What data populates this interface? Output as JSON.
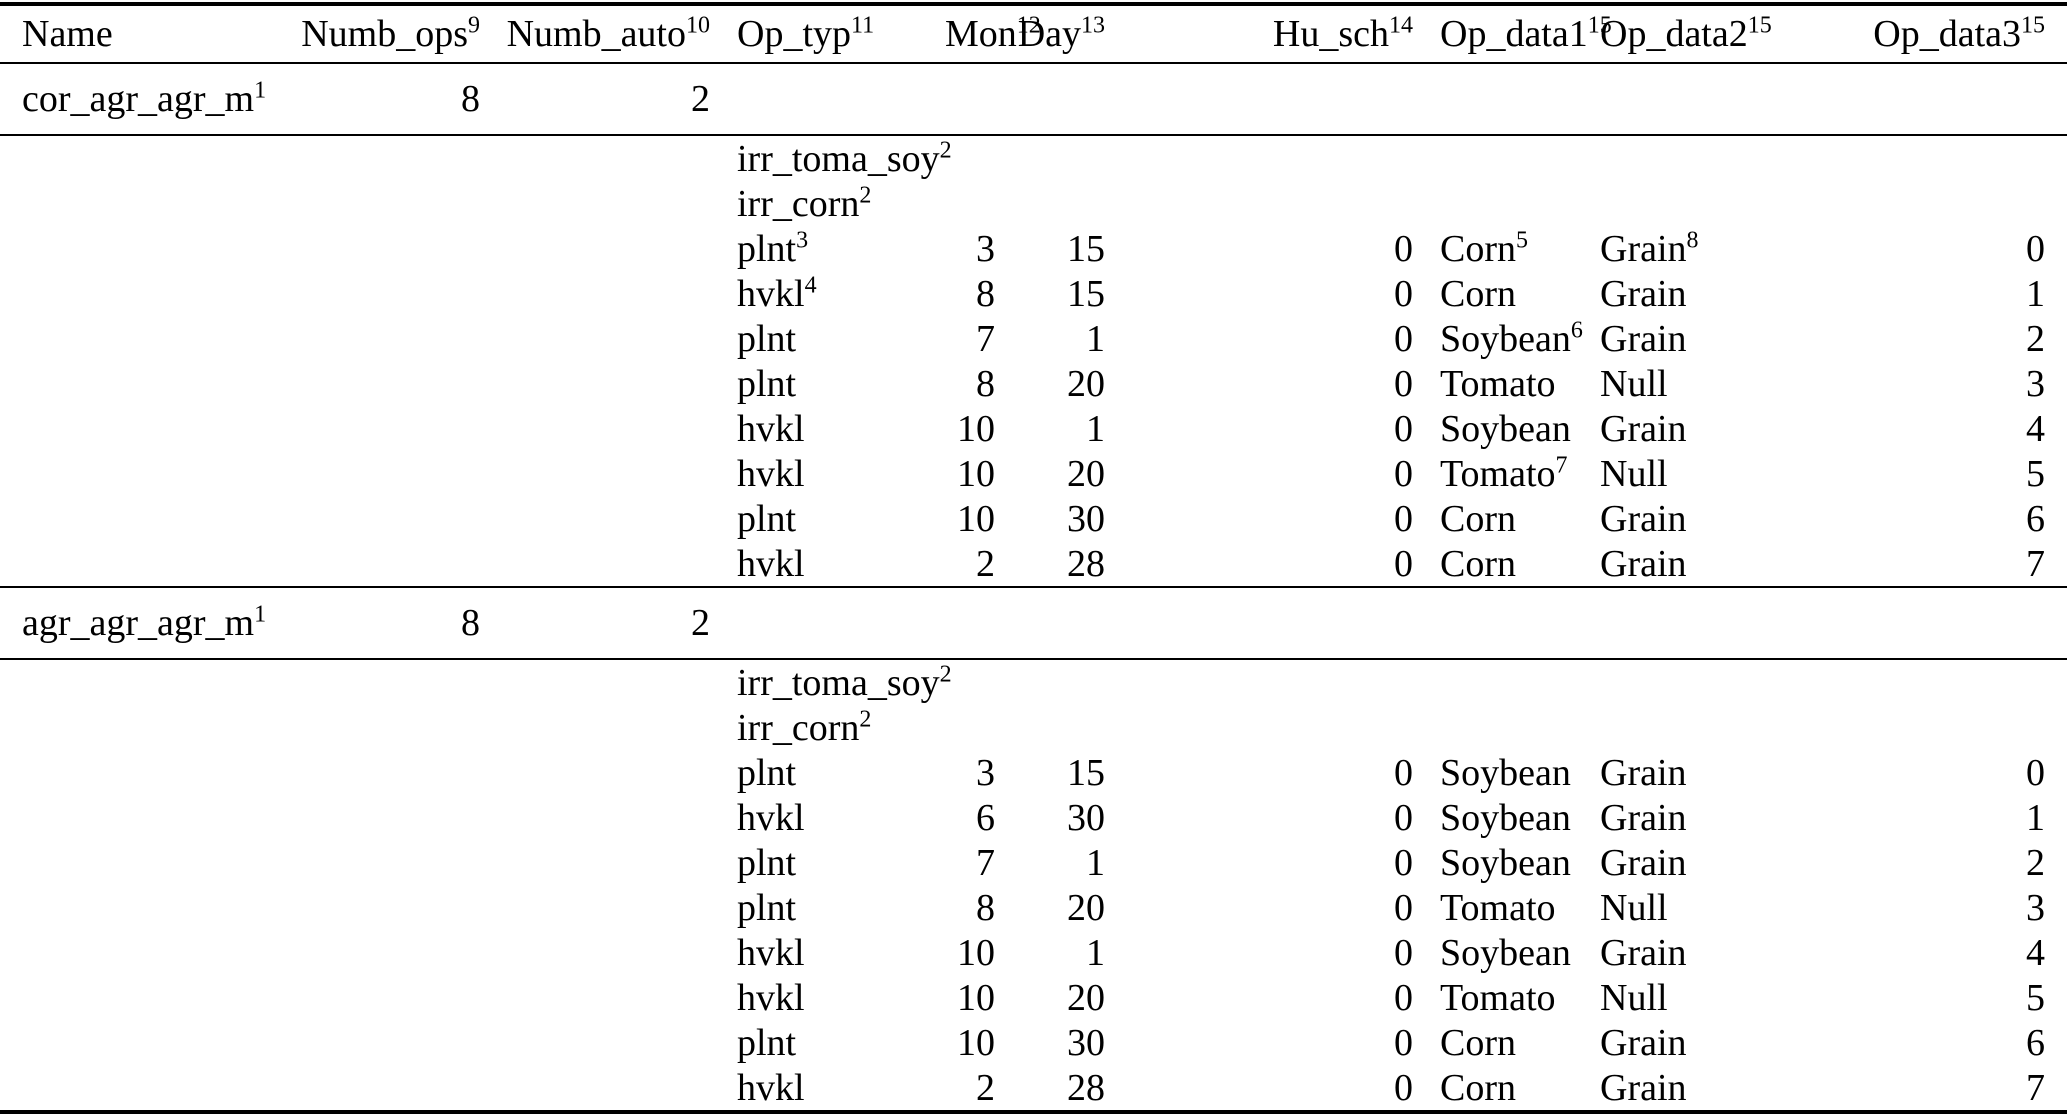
{
  "style": {
    "ink": "#000000",
    "paper": "#ffffff"
  },
  "table": {
    "columns": [
      {
        "key": "name",
        "label": "Name",
        "sup": "",
        "align": "left"
      },
      {
        "key": "numb_ops",
        "label": "Numb_ops",
        "sup": "9",
        "align": "right"
      },
      {
        "key": "numb_auto",
        "label": "Numb_auto",
        "sup": "10",
        "align": "right"
      },
      {
        "key": "op_typ",
        "label": "Op_typ",
        "sup": "11",
        "align": "left"
      },
      {
        "key": "mon",
        "label": "Mon",
        "sup": "12",
        "align": "right"
      },
      {
        "key": "day",
        "label": "Day",
        "sup": "13",
        "align": "right"
      },
      {
        "key": "hu_sch",
        "label": "Hu_sch",
        "sup": "14",
        "align": "right"
      },
      {
        "key": "op_data1",
        "label": "Op_data1",
        "sup": "15",
        "align": "left"
      },
      {
        "key": "op_data2",
        "label": "Op_data2",
        "sup": "15",
        "align": "left"
      },
      {
        "key": "op_data3",
        "label": "Op_data3",
        "sup": "15",
        "align": "right"
      }
    ],
    "groups": [
      {
        "summary": {
          "name": "cor_agr_agr_m",
          "name_sup": "1",
          "numb_ops": "8",
          "numb_auto": "2"
        },
        "operations": [
          {
            "op_typ": "irr_toma_soy",
            "op_typ_sup": "2"
          },
          {
            "op_typ": "irr_corn",
            "op_typ_sup": "2"
          },
          {
            "op_typ": "plnt",
            "op_typ_sup": "3",
            "mon": "3",
            "day": "15",
            "hu_sch": "0",
            "op_data1": "Corn",
            "op_data1_sup": "5",
            "op_data2": "Grain",
            "op_data2_sup": "8",
            "op_data3": "0"
          },
          {
            "op_typ": "hvkl",
            "op_typ_sup": "4",
            "mon": "8",
            "day": "15",
            "hu_sch": "0",
            "op_data1": "Corn",
            "op_data2": "Grain",
            "op_data3": "1"
          },
          {
            "op_typ": "plnt",
            "mon": "7",
            "day": "1",
            "hu_sch": "0",
            "op_data1": "Soybean",
            "op_data1_sup": "6",
            "op_data2": "Grain",
            "op_data3": "2"
          },
          {
            "op_typ": "plnt",
            "mon": "8",
            "day": "20",
            "hu_sch": "0",
            "op_data1": "Tomato",
            "op_data2": "Null",
            "op_data3": "3"
          },
          {
            "op_typ": "hvkl",
            "mon": "10",
            "day": "1",
            "hu_sch": "0",
            "op_data1": "Soybean",
            "op_data2": "Grain",
            "op_data3": "4"
          },
          {
            "op_typ": "hvkl",
            "mon": "10",
            "day": "20",
            "hu_sch": "0",
            "op_data1": "Tomato",
            "op_data1_sup": "7",
            "op_data2": "Null",
            "op_data3": "5"
          },
          {
            "op_typ": "plnt",
            "mon": "10",
            "day": "30",
            "hu_sch": "0",
            "op_data1": "Corn",
            "op_data2": "Grain",
            "op_data3": "6"
          },
          {
            "op_typ": "hvkl",
            "mon": "2",
            "day": "28",
            "hu_sch": "0",
            "op_data1": "Corn",
            "op_data2": "Grain",
            "op_data3": "7"
          }
        ]
      },
      {
        "summary": {
          "name": "agr_agr_agr_m",
          "name_sup": "1",
          "numb_ops": "8",
          "numb_auto": "2"
        },
        "operations": [
          {
            "op_typ": "irr_toma_soy",
            "op_typ_sup": "2"
          },
          {
            "op_typ": "irr_corn",
            "op_typ_sup": "2"
          },
          {
            "op_typ": "plnt",
            "mon": "3",
            "day": "15",
            "hu_sch": "0",
            "op_data1": "Soybean",
            "op_data2": "Grain",
            "op_data3": "0"
          },
          {
            "op_typ": "hvkl",
            "mon": "6",
            "day": "30",
            "hu_sch": "0",
            "op_data1": "Soybean",
            "op_data2": "Grain",
            "op_data3": "1"
          },
          {
            "op_typ": "plnt",
            "mon": "7",
            "day": "1",
            "hu_sch": "0",
            "op_data1": "Soybean",
            "op_data2": "Grain",
            "op_data3": "2"
          },
          {
            "op_typ": "plnt",
            "mon": "8",
            "day": "20",
            "hu_sch": "0",
            "op_data1": "Tomato",
            "op_data2": "Null",
            "op_data3": "3"
          },
          {
            "op_typ": "hvkl",
            "mon": "10",
            "day": "1",
            "hu_sch": "0",
            "op_data1": "Soybean",
            "op_data2": "Grain",
            "op_data3": "4"
          },
          {
            "op_typ": "hvkl",
            "mon": "10",
            "day": "20",
            "hu_sch": "0",
            "op_data1": "Tomato",
            "op_data2": "Null",
            "op_data3": "5"
          },
          {
            "op_typ": "plnt",
            "mon": "10",
            "day": "30",
            "hu_sch": "0",
            "op_data1": "Corn",
            "op_data2": "Grain",
            "op_data3": "6"
          },
          {
            "op_typ": "hvkl",
            "mon": "2",
            "day": "28",
            "hu_sch": "0",
            "op_data1": "Corn",
            "op_data2": "Grain",
            "op_data3": "7"
          }
        ]
      }
    ]
  }
}
